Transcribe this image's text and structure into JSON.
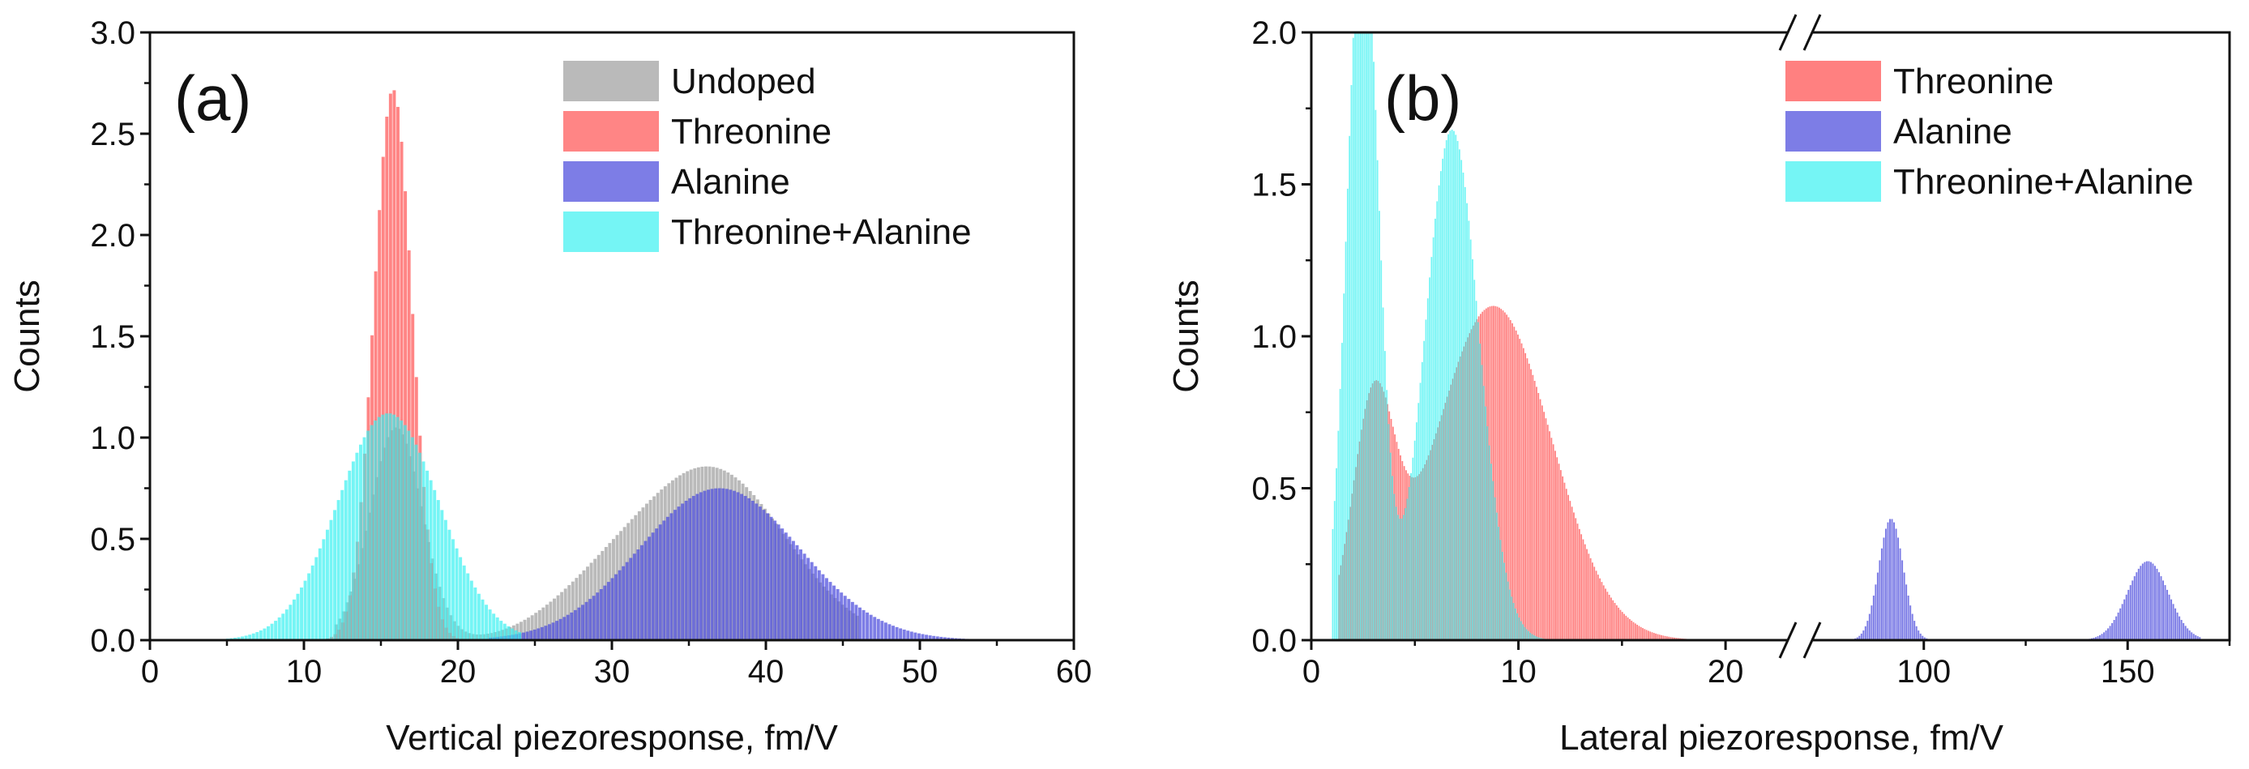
{
  "chart_data": [
    {
      "type": "bar",
      "panel_label": "(a)",
      "xlabel": "Vertical piezoresponse, fm/V",
      "ylabel": "Counts",
      "xlim": [
        0,
        60
      ],
      "ylim": [
        0,
        3.0
      ],
      "xticks": [
        0,
        10,
        20,
        30,
        40,
        50,
        60
      ],
      "yticks": [
        0.0,
        0.5,
        1.0,
        1.5,
        2.0,
        2.5,
        3.0
      ],
      "xtick_labels": [
        "0",
        "10",
        "20",
        "30",
        "40",
        "50",
        "60"
      ],
      "ytick_labels": [
        "0.0",
        "0.5",
        "1.0",
        "1.5",
        "2.0",
        "2.5",
        "3.0"
      ],
      "legend_position": "top-right",
      "series": [
        {
          "name": "Undoped",
          "color": "#a0a0a0",
          "opacity": 0.72,
          "peaks": [
            {
              "center": 16,
              "height": 1.05,
              "width": 1.7
            },
            {
              "center": 36.5,
              "height": 0.84,
              "width": 4.8
            },
            {
              "center": 29,
              "height": 0.16,
              "width": 3.5
            }
          ],
          "range": [
            12,
            46
          ]
        },
        {
          "name": "Threonine",
          "color": "#ff5c5c",
          "opacity": 0.75,
          "peaks": [
            {
              "center": 15.8,
              "height": 2.72,
              "width": 1.25
            }
          ],
          "range": [
            10,
            23
          ]
        },
        {
          "name": "Alanine",
          "color": "#4b4bdc",
          "opacity": 0.72,
          "peaks": [
            {
              "center": 37,
              "height": 0.75,
              "width": 5.2
            }
          ],
          "range": [
            22,
            59
          ]
        },
        {
          "name": "Threonine+Alanine",
          "color": "#33f0f0",
          "opacity": 0.68,
          "peaks": [
            {
              "center": 15.5,
              "height": 1.12,
              "width": 3.3
            }
          ],
          "range": [
            3.5,
            24
          ]
        }
      ]
    },
    {
      "type": "bar",
      "panel_label": "(b)",
      "xlabel": "Lateral piezoresponse, fm/V",
      "ylabel": "Counts",
      "ylim": [
        0,
        2.0
      ],
      "axis_break": true,
      "x_segments": [
        {
          "range": [
            0,
            22.5
          ]
        },
        {
          "range": [
            75,
            175
          ]
        }
      ],
      "xticks": [
        0,
        10,
        20,
        100,
        150
      ],
      "yticks": [
        0.0,
        0.5,
        1.0,
        1.5,
        2.0
      ],
      "xtick_labels": [
        "0",
        "10",
        "20",
        "100",
        "150"
      ],
      "ytick_labels": [
        "0.0",
        "0.5",
        "1.0",
        "1.5",
        "2.0"
      ],
      "legend_position": "top-right",
      "series": [
        {
          "name": "Threonine",
          "color": "#ff5c5c",
          "opacity": 0.78,
          "peaks": [
            {
              "center": 3.0,
              "height": 0.72,
              "width": 1.0
            },
            {
              "center": 8.8,
              "height": 1.1,
              "width": 2.8
            }
          ],
          "range": [
            1.3,
            22.5
          ]
        },
        {
          "name": "Alanine",
          "color": "#4b4bdc",
          "opacity": 0.72,
          "peaks": [
            {
              "center": 92,
              "height": 0.4,
              "width": 3.0
            },
            {
              "center": 155,
              "height": 0.26,
              "width": 5.0
            }
          ],
          "range": [
            80,
            168
          ]
        },
        {
          "name": "Threonine+Alanine",
          "color": "#33f0f0",
          "opacity": 0.68,
          "peaks": [
            {
              "center": 2.5,
              "height": 2.4,
              "width": 0.75
            },
            {
              "center": 6.8,
              "height": 1.68,
              "width": 1.3
            }
          ],
          "range": [
            1.0,
            12
          ]
        }
      ]
    }
  ]
}
